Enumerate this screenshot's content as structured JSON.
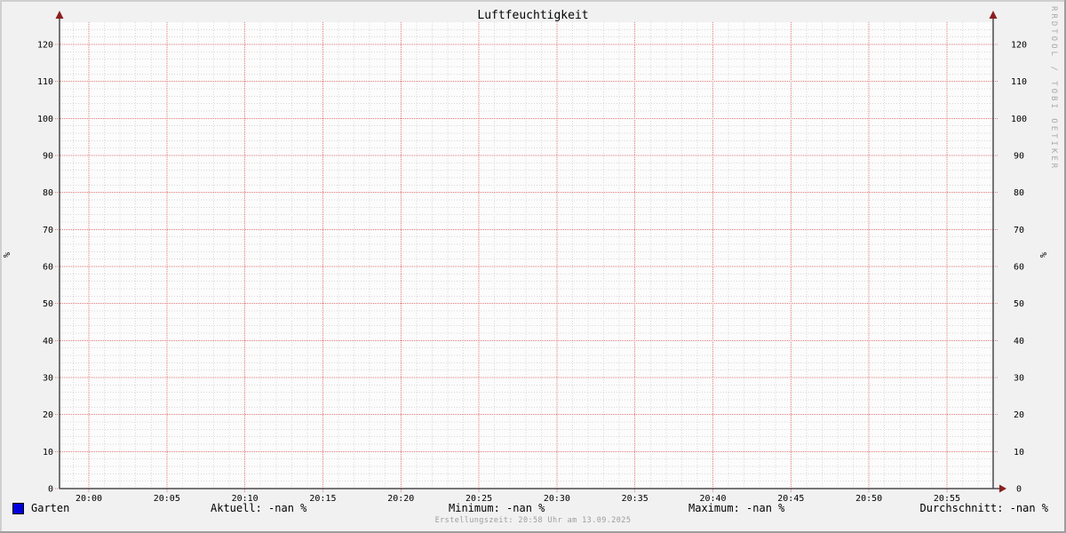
{
  "title": "Luftfeuchtigkeit",
  "unit_left": "%",
  "unit_right": "%",
  "watermark": "RRDTOOL / TOBI OETIKER",
  "footer": "Erstellungszeit: 20:58 Uhr am 13.09.2025",
  "legend": {
    "series_label": "Garten",
    "series_color": "#0000dd",
    "stats": [
      "Aktuell: -nan %",
      "Minimum: -nan %",
      "Maximum: -nan %",
      "Durchschnitt: -nan %"
    ]
  },
  "colors": {
    "background": "#f1f1f1",
    "canvas": "#fcfcfc",
    "major_grid": "#e07a7a",
    "minor_grid": "#d8d8d8",
    "axis": "#4a4a4a",
    "arrow": "#8b1f1f",
    "label": "#000000",
    "watermark_gray": "#a9a9a9",
    "footer_gray": "#9d9d9d"
  },
  "chart_data": {
    "type": "line",
    "title": "Luftfeuchtigkeit",
    "xlabel": "",
    "ylabel": "%",
    "ylim": [
      0,
      126
    ],
    "y_ticks": [
      0,
      10,
      20,
      30,
      40,
      50,
      60,
      70,
      80,
      90,
      100,
      110,
      120
    ],
    "x_ticks": [
      "20:00",
      "20:05",
      "20:10",
      "20:15",
      "20:20",
      "20:25",
      "20:30",
      "20:35",
      "20:40",
      "20:45",
      "20:50",
      "20:55"
    ],
    "x_major_step_minutes": 5,
    "x_minor_step_minutes": 1,
    "y_minor_step": 2,
    "grid": true,
    "legend_position": "bottom",
    "series": [
      {
        "name": "Garten",
        "color": "#0000dd",
        "values": [],
        "no_data": true
      }
    ]
  }
}
